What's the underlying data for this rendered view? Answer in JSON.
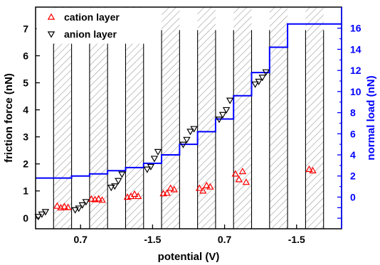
{
  "chart_data": {
    "type": "scatter",
    "xlabel": "potential (V)",
    "ylabel": "friction force (nN)",
    "y2label": "normal load (nN)",
    "xlim": [
      0,
      17
    ],
    "ylim": [
      -0.4,
      7.8
    ],
    "y2lim": [
      -3.0,
      18.0
    ],
    "x_tick_positions": [
      2.5,
      6.5,
      10.5,
      14.5
    ],
    "x_tick_labels": [
      "0.7",
      "-1.5",
      "0.7",
      "-1.5"
    ],
    "y_ticks": [
      0,
      1,
      2,
      3,
      4,
      5,
      6,
      7
    ],
    "y2_ticks": [
      0,
      2,
      4,
      6,
      8,
      10,
      12,
      14,
      16
    ],
    "shaded_bands": [
      [
        1,
        2
      ],
      [
        3,
        4
      ],
      [
        5,
        6
      ],
      [
        7,
        8
      ],
      [
        9,
        10
      ],
      [
        11,
        12
      ],
      [
        13,
        14
      ],
      [
        15,
        16
      ]
    ],
    "grid": false,
    "legend_position": "top-left",
    "colors": {
      "cation": "#ff0000",
      "anion": "#000000",
      "load": "#0000ff",
      "hatch": "#999999"
    },
    "series": [
      {
        "name": "cation layer",
        "marker": "triangle-up",
        "axis": "left",
        "points": [
          [
            1.2,
            0.44
          ],
          [
            1.4,
            0.38
          ],
          [
            1.6,
            0.42
          ],
          [
            1.8,
            0.39
          ],
          [
            3.1,
            0.7
          ],
          [
            3.3,
            0.68
          ],
          [
            3.5,
            0.71
          ],
          [
            3.7,
            0.66
          ],
          [
            5.1,
            0.77
          ],
          [
            5.3,
            0.8
          ],
          [
            5.5,
            0.88
          ],
          [
            5.7,
            0.8
          ],
          [
            7.1,
            0.9
          ],
          [
            7.3,
            0.92
          ],
          [
            7.5,
            1.1
          ],
          [
            7.7,
            1.05
          ],
          [
            9.1,
            1.1
          ],
          [
            9.3,
            1.0
          ],
          [
            9.5,
            1.2
          ],
          [
            9.7,
            1.15
          ],
          [
            11.1,
            1.63
          ],
          [
            11.3,
            1.42
          ],
          [
            11.5,
            1.72
          ],
          [
            11.7,
            1.32
          ],
          [
            15.2,
            1.8
          ],
          [
            15.4,
            1.75
          ]
        ]
      },
      {
        "name": "anion layer",
        "marker": "triangle-down",
        "axis": "left",
        "points": [
          [
            0.15,
            0.05
          ],
          [
            0.35,
            0.14
          ],
          [
            0.55,
            0.23
          ],
          [
            2.2,
            0.3
          ],
          [
            2.4,
            0.36
          ],
          [
            2.6,
            0.48
          ],
          [
            2.8,
            0.6
          ],
          [
            4.2,
            1.13
          ],
          [
            4.4,
            1.18
          ],
          [
            4.6,
            1.38
          ],
          [
            4.8,
            1.62
          ],
          [
            6.2,
            1.8
          ],
          [
            6.4,
            1.9
          ],
          [
            6.6,
            2.2
          ],
          [
            6.8,
            2.45
          ],
          [
            8.2,
            2.72
          ],
          [
            8.4,
            2.9
          ],
          [
            8.6,
            3.2
          ],
          [
            8.8,
            3.3
          ],
          [
            10.2,
            3.65
          ],
          [
            10.4,
            3.82
          ],
          [
            10.6,
            4.0
          ],
          [
            10.8,
            4.35
          ],
          [
            12.2,
            4.95
          ],
          [
            12.4,
            5.05
          ],
          [
            12.6,
            5.2
          ],
          [
            12.8,
            5.4
          ]
        ]
      },
      {
        "name": "normal load",
        "type": "step-line",
        "axis": "right",
        "x": [
          0,
          1,
          2,
          3,
          4,
          5,
          6,
          7,
          8,
          9,
          10,
          11,
          12,
          13,
          14,
          15,
          16,
          17
        ],
        "values": [
          1.8,
          1.8,
          2.0,
          2.2,
          2.5,
          2.8,
          3.2,
          4.0,
          5.0,
          6.2,
          7.4,
          9.6,
          11.8,
          14.2,
          16.4,
          16.4,
          16.4,
          16.4
        ]
      }
    ]
  }
}
